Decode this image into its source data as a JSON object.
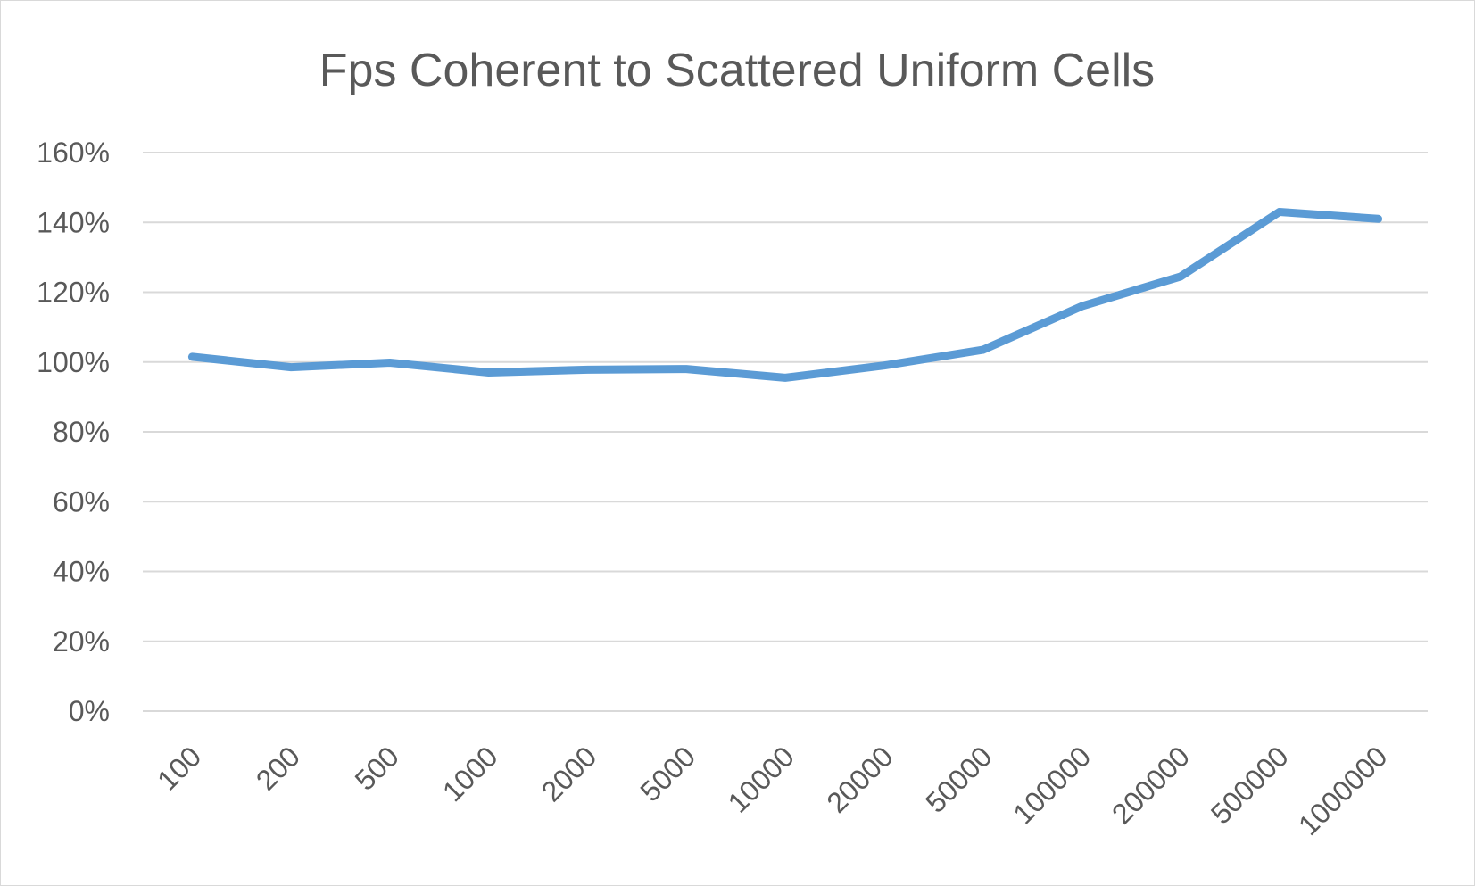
{
  "chart_data": {
    "type": "line",
    "title": "Fps Coherent to Scattered Uniform Cells",
    "categories": [
      "100",
      "200",
      "500",
      "1000",
      "2000",
      "5000",
      "10000",
      "20000",
      "50000",
      "100000",
      "200000",
      "500000",
      "1000000"
    ],
    "series": [
      {
        "values": [
          101.5,
          98.5,
          99.8,
          97.0,
          97.8,
          98.0,
          95.5,
          99.0,
          103.5,
          116.0,
          124.5,
          143.0,
          141.0
        ]
      }
    ],
    "y_ticks": [
      "0%",
      "20%",
      "40%",
      "60%",
      "80%",
      "100%",
      "120%",
      "140%",
      "160%"
    ],
    "ylim": [
      0,
      160
    ],
    "grid": true,
    "legend": "none",
    "colors": {
      "series": "#5b9bd5",
      "grid": "#d9d9d9",
      "text": "#595959"
    }
  }
}
